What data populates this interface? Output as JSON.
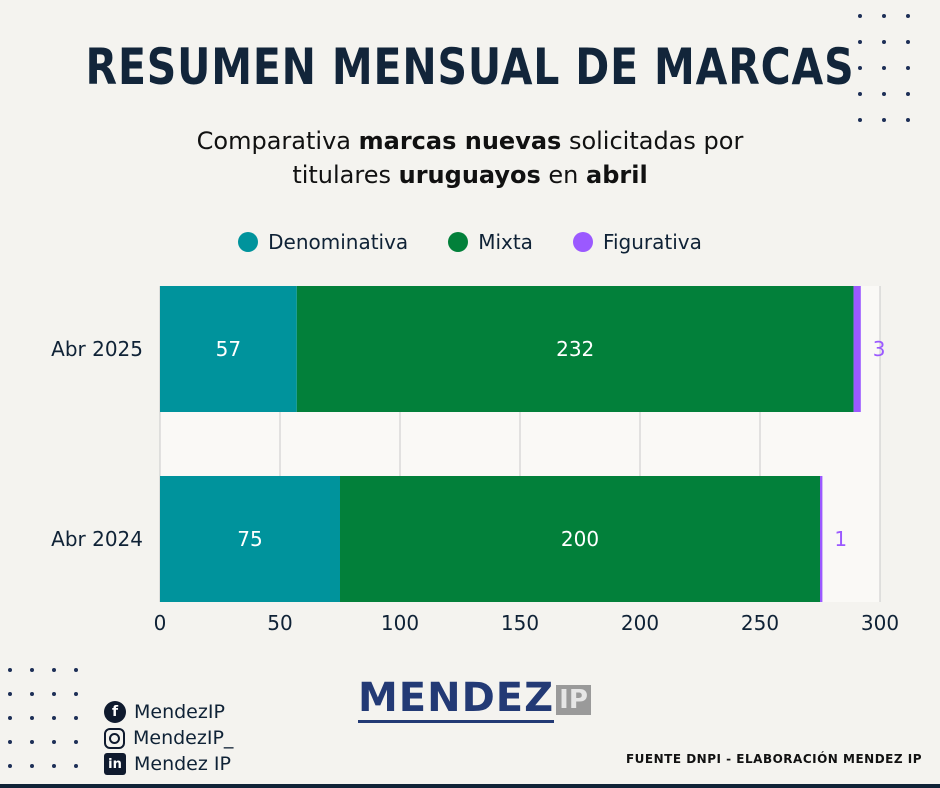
{
  "header": {
    "title": "RESUMEN MENSUAL DE MARCAS",
    "subtitle_parts": {
      "p1": "Comparativa ",
      "b1": "marcas nuevas",
      "p2": " solicitadas por",
      "p3": "titulares ",
      "b2": "uruguayos",
      "p4": " en ",
      "b3": "abril"
    }
  },
  "colors": {
    "denominativa": "#00939c",
    "mixta": "#02803a",
    "figurativa": "#9b59ff",
    "grid": "#c9c9c9",
    "text": "#0f2236"
  },
  "chart_data": {
    "type": "bar",
    "orientation": "horizontal",
    "stacked": true,
    "categories": [
      "Abr 2025",
      "Abr 2024"
    ],
    "series": [
      {
        "name": "Denominativa",
        "values": [
          57,
          75
        ]
      },
      {
        "name": "Mixta",
        "values": [
          232,
          200
        ]
      },
      {
        "name": "Figurativa",
        "values": [
          3,
          1
        ]
      }
    ],
    "xlim": [
      0,
      300
    ],
    "xticks": [
      0,
      50,
      100,
      150,
      200,
      250,
      300
    ],
    "grid": true,
    "legend": "top-center"
  },
  "social": {
    "facebook": "MendezIP",
    "instagram": "MendezIP_",
    "linkedin": "Mendez IP",
    "icons": [
      "facebook-icon",
      "instagram-icon",
      "linkedin-icon"
    ]
  },
  "logo": {
    "main": "MENDEZ",
    "suffix": "IP"
  },
  "footer": {
    "source": "FUENTE DNPI - ELABORACIÓN MENDEZ IP"
  }
}
